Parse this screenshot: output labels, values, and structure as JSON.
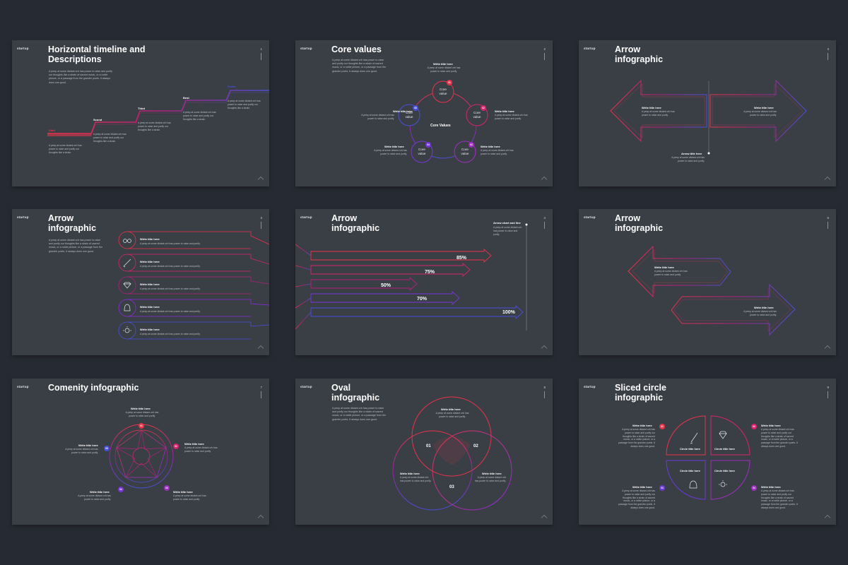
{
  "brand": "startup",
  "desc": "A peep at some distant orb has power to raise and purify our thoughts like a strain of sacred music, or a noble picture, or a passage from the grander poets. It always does one good.",
  "short": "A peep at some distant orb has power to raise and purify.",
  "write_title": "Write title here",
  "slides": [
    {
      "title": "Horizontal timeline and\nDescriptions",
      "num": "1",
      "steps": [
        "Start",
        "Scond",
        "Third",
        "Best",
        "Finish"
      ],
      "step_text": "A peep at some distant orb has power to raise and purify our thoughts like a strain."
    },
    {
      "title": "Core values",
      "num": "2",
      "center": "Core Values",
      "node_label": "Core\nvalue",
      "badges": [
        "01",
        "02",
        "03",
        "04",
        "05"
      ],
      "item_text": "A peep at some distant orb has power to raise and purify."
    },
    {
      "title": "Arrow\ninfographic",
      "num": "3",
      "bottom_label": "Arrow title here"
    },
    {
      "title": "Arrow\ninfographic",
      "num": "3",
      "rows": 5
    },
    {
      "title": "Arrow\ninfographic",
      "num": "4",
      "side_label": "Arrow chart and line",
      "bars": [
        "85%",
        "75%",
        "50%",
        "70%",
        "100%"
      ],
      "bar_values": [
        85,
        75,
        50,
        70,
        100
      ]
    },
    {
      "title": "Arrow\ninfographic",
      "num": "6"
    },
    {
      "title": "Comenity infographic",
      "num": "7",
      "badges": [
        "01",
        "02",
        "03",
        "04",
        "05"
      ]
    },
    {
      "title": "Oval\ninfographic",
      "num": "8",
      "numbers": [
        "01",
        "02",
        "03"
      ]
    },
    {
      "title": "Sliced circle\ninfographic",
      "num": "9",
      "circle_title": "Circle title here",
      "badges": [
        "01",
        "02",
        "03",
        "04"
      ]
    }
  ],
  "colors": {
    "red": "#e8334a",
    "pink": "#d8246e",
    "purple": "#8a2be2",
    "blue": "#4a4fd8",
    "bg": "#3a3f46"
  }
}
